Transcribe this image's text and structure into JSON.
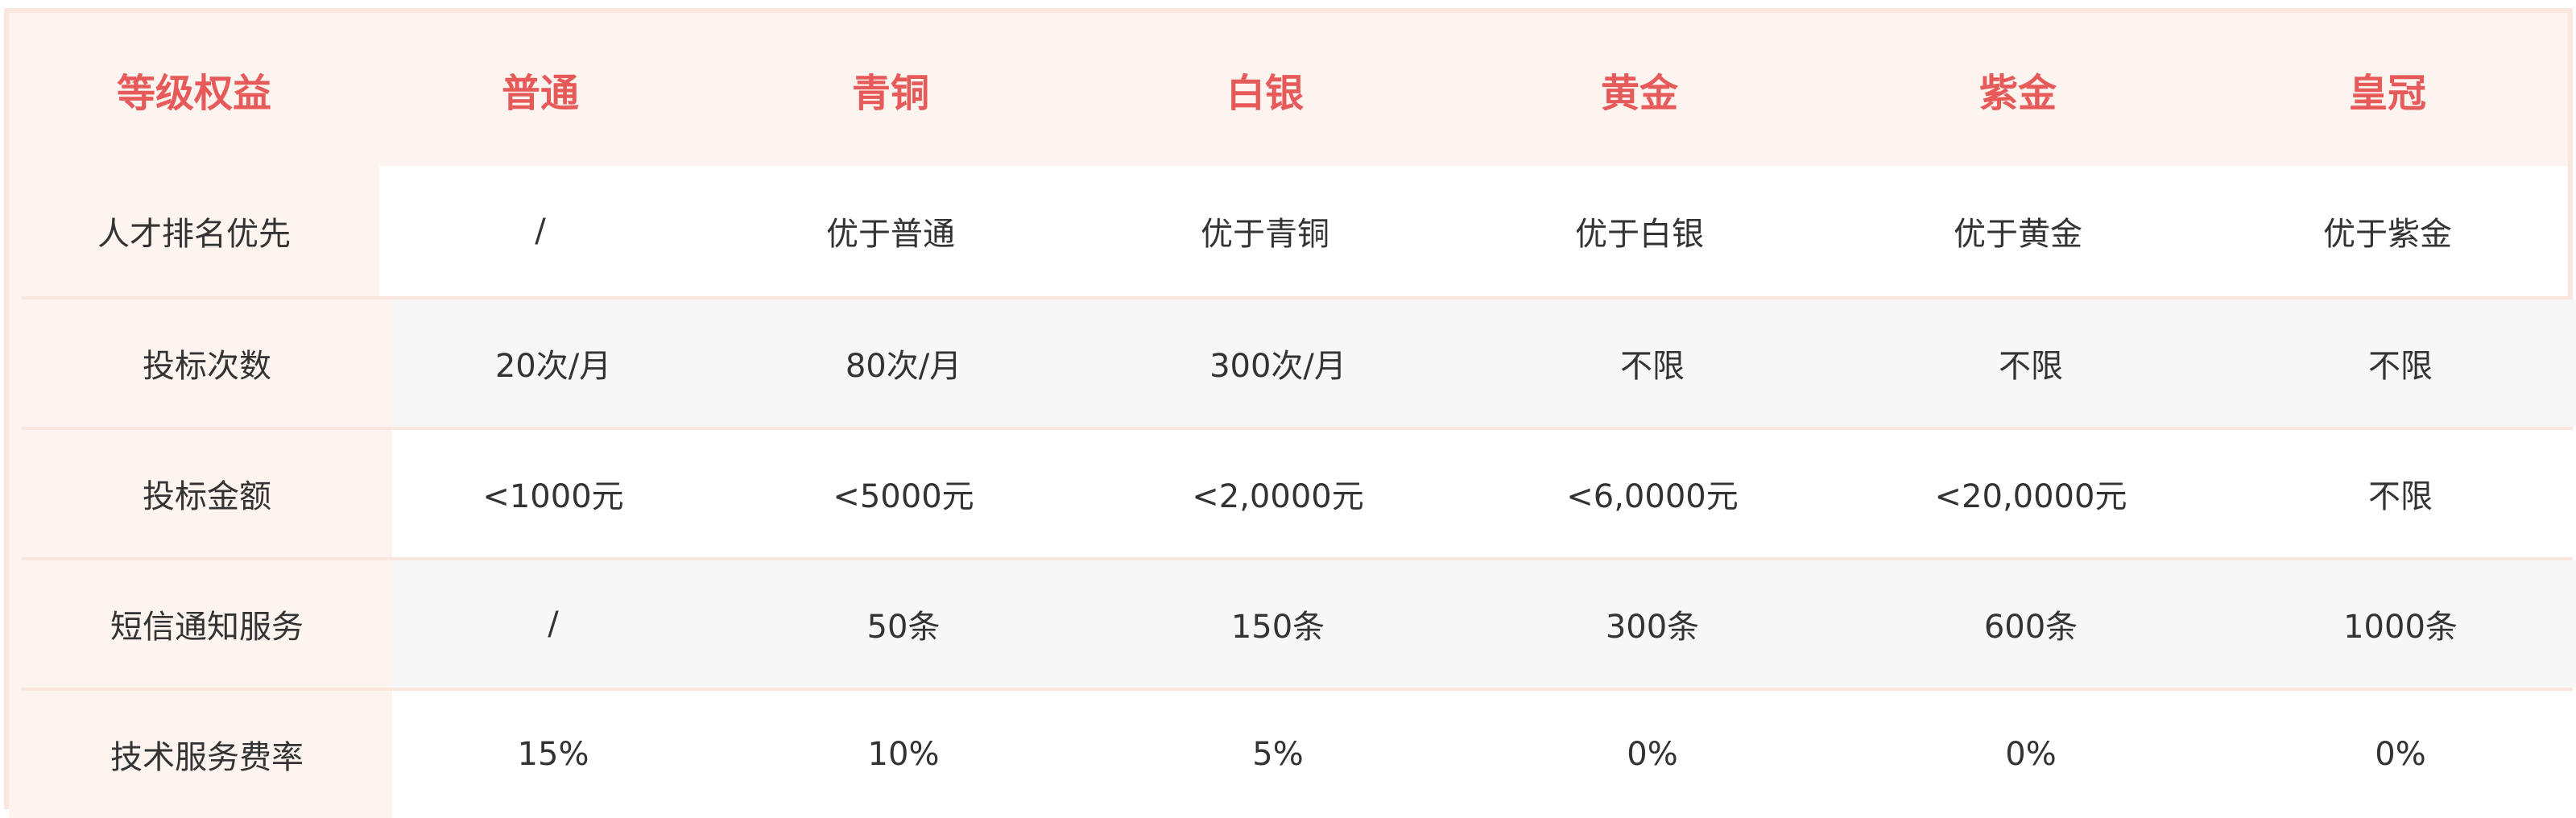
{
  "header": [
    "等级权益",
    "普通",
    "青铜",
    "白银",
    "黄金",
    "紫金",
    "皇冠"
  ],
  "rows": [
    {
      "label": "人才排名优先",
      "values": [
        "/",
        "优于普通",
        "优于青铜",
        "优于白银",
        "优于黄金",
        "优于紫金"
      ]
    },
    {
      "label": "投标次数",
      "values": [
        "20次/月",
        "80次/月",
        "300次/月",
        "不限",
        "不限",
        "不限"
      ]
    },
    {
      "label": "投标金额",
      "values": [
        "<1000元",
        "<5000元",
        "<2,0000元",
        "<6,0000元",
        "<20,0000元",
        "不限"
      ]
    },
    {
      "label": "短信通知服务",
      "values": [
        "/",
        "50条",
        "150条",
        "300条",
        "600条",
        "1000条"
      ]
    },
    {
      "label": "技术服务费率",
      "values": [
        "15%",
        "10%",
        "5%",
        "0%",
        "0%",
        "0%"
      ]
    }
  ],
  "colors": {
    "accent": "#e65a5a",
    "border": "#f8e6df",
    "label_bg": "#fdf4f0",
    "alt_row": "#f7f7f7"
  }
}
